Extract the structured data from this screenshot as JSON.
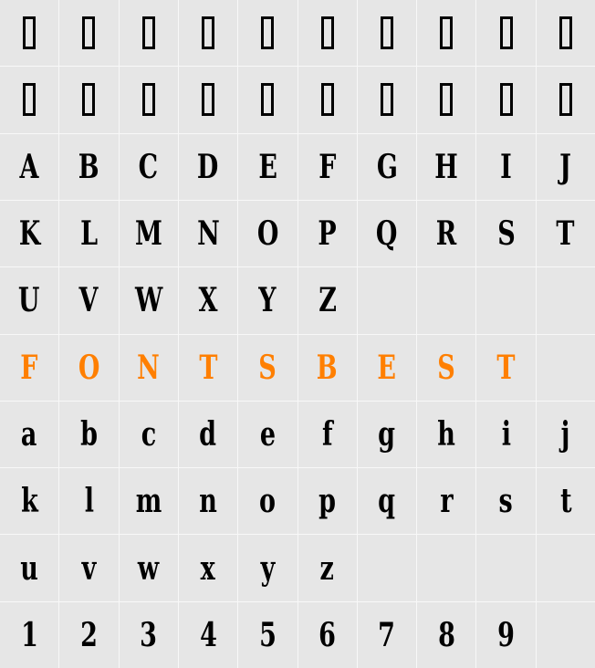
{
  "accent_color": "#ff7f00",
  "rows": [
    {
      "cells": [
        "tofu",
        "tofu",
        "tofu",
        "tofu",
        "tofu",
        "tofu",
        "tofu",
        "tofu",
        "tofu",
        "tofu"
      ]
    },
    {
      "cells": [
        "tofu",
        "tofu",
        "tofu",
        "tofu",
        "tofu",
        "tofu",
        "tofu",
        "tofu",
        "tofu",
        "tofu"
      ]
    },
    {
      "cells": [
        "A",
        "B",
        "C",
        "D",
        "E",
        "F",
        "G",
        "H",
        "I",
        "J"
      ]
    },
    {
      "cells": [
        "K",
        "L",
        "M",
        "N",
        "O",
        "P",
        "Q",
        "R",
        "S",
        "T"
      ]
    },
    {
      "cells": [
        "U",
        "V",
        "W",
        "X",
        "Y",
        "Z",
        "",
        "",
        "",
        ""
      ]
    },
    {
      "cells": [
        "F",
        "O",
        "N",
        "T",
        "S",
        "B",
        "E",
        "S",
        "T",
        ""
      ],
      "highlight": true
    },
    {
      "cells": [
        "a",
        "b",
        "c",
        "d",
        "e",
        "f",
        "g",
        "h",
        "i",
        "j"
      ]
    },
    {
      "cells": [
        "k",
        "l",
        "m",
        "n",
        "o",
        "p",
        "q",
        "r",
        "s",
        "t"
      ]
    },
    {
      "cells": [
        "u",
        "v",
        "w",
        "x",
        "y",
        "z",
        "",
        "",
        "",
        ""
      ]
    },
    {
      "cells": [
        "1",
        "2",
        "3",
        "4",
        "5",
        "6",
        "7",
        "8",
        "9",
        ""
      ]
    }
  ]
}
